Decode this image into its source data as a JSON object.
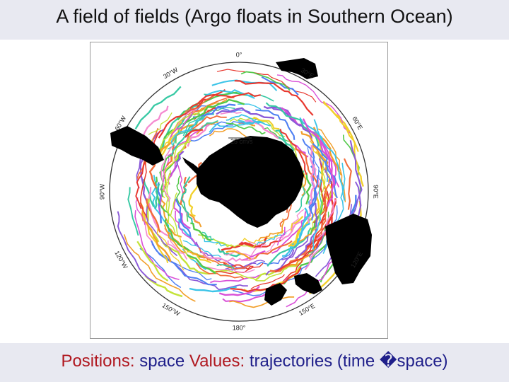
{
  "title": "A field of fields (Argo floats in Southern Ocean)",
  "footer": {
    "positions_label": "Positions:",
    "positions_value": "space",
    "values_label": "Values:",
    "values_value": "trajectories (time �space)"
  },
  "map": {
    "meridian_labels": [
      "0°",
      "30°E",
      "60°E",
      "90°E",
      "120°E",
      "150°E",
      "180°",
      "150°W",
      "120°W",
      "90°W",
      "60°W",
      "30°W"
    ],
    "scale_label": "25 cm/s",
    "land_color": "#000000",
    "ocean_color": "#ffffff",
    "trajectory_colors": [
      "#e8382f",
      "#f26c3a",
      "#f58ad0",
      "#d94fd7",
      "#8a59d8",
      "#4e7ff2",
      "#3cc4e8",
      "#37c9a4",
      "#52c94a",
      "#c4e33a",
      "#f2d02a",
      "#f29f2a"
    ]
  }
}
